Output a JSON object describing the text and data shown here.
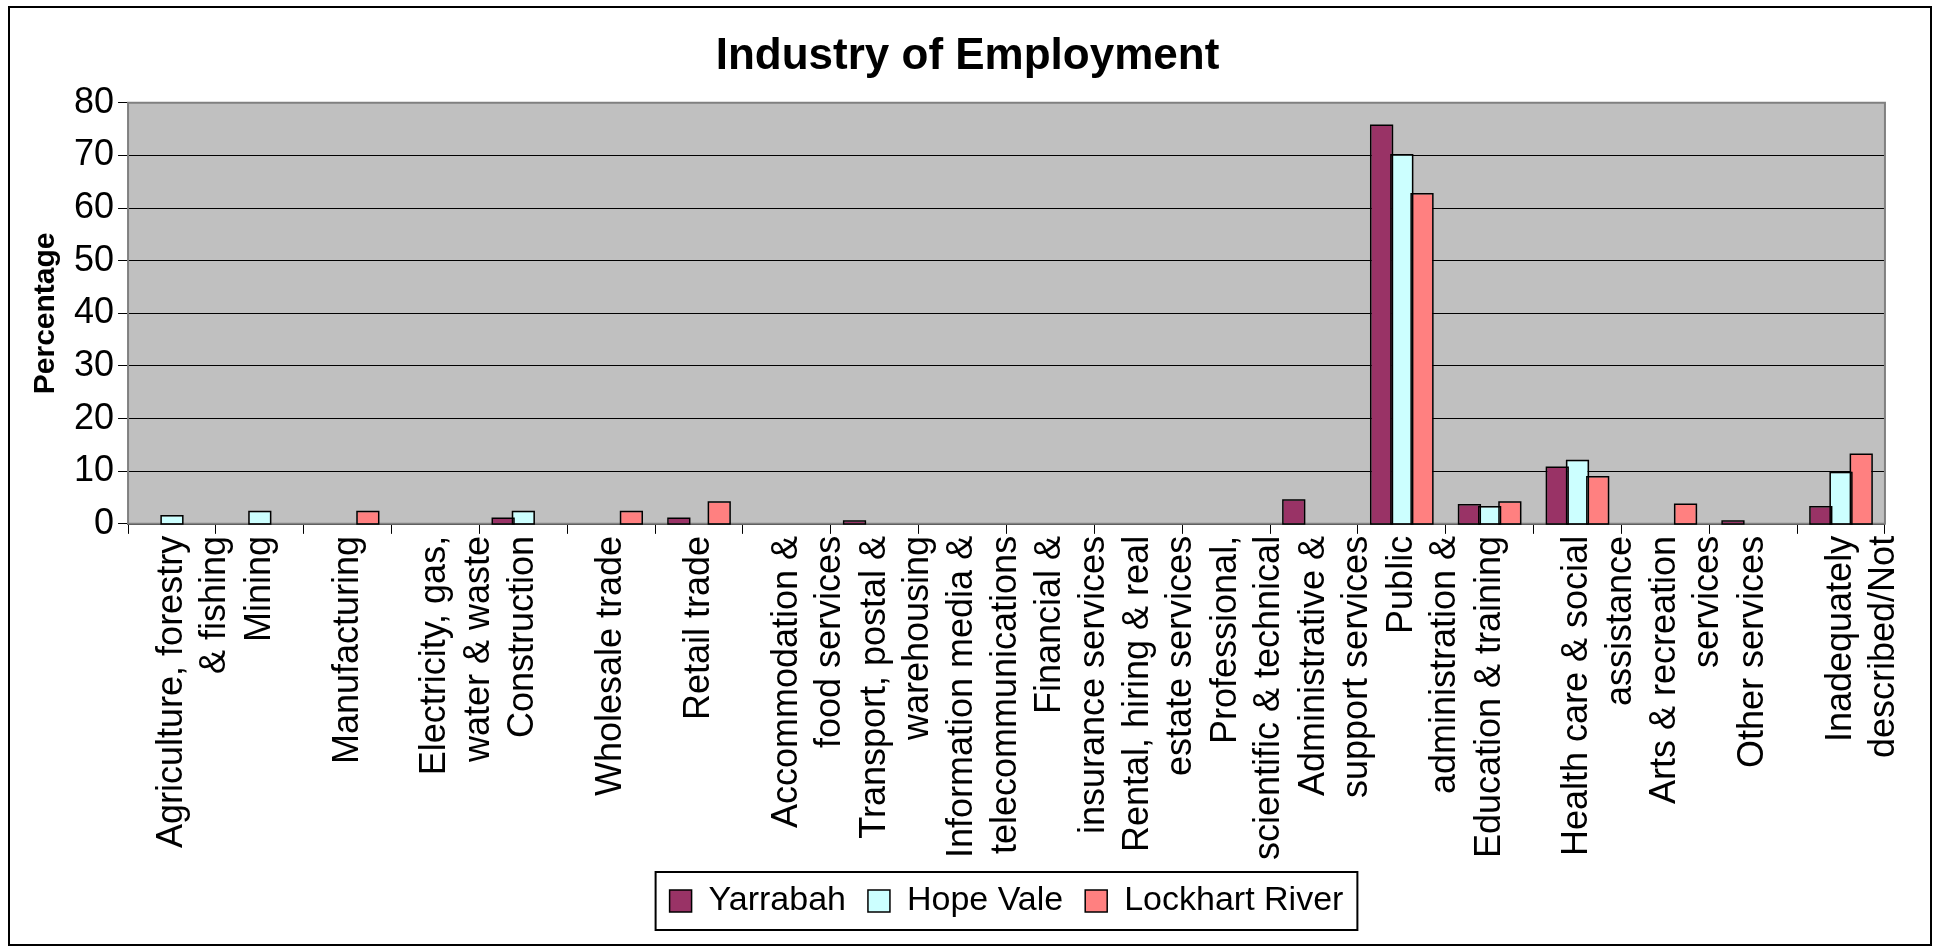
{
  "chart_data": {
    "type": "bar",
    "title": "Industry of Employment",
    "ylabel": "Percentage",
    "categories": [
      "Agriculture, forestry & fishing",
      "Mining",
      "Manufacturing",
      "Electricity, gas, water & waste",
      "Construction",
      "Wholesale trade",
      "Retail trade",
      "Accommodation & food services",
      "Transport, postal & warehousing",
      "Information media & telecommunications",
      "Financial & insurance services",
      "Rental, hiring & real estate services",
      "Professional, scientific & technical",
      "Administrative & support services",
      "Public administration &",
      "Education & training",
      "Health care & social assistance",
      "Arts & recreation services",
      "Other services",
      "Inadequately described/Not"
    ],
    "series": [
      {
        "name": "Yarrabah",
        "color": "#993366",
        "values": [
          0,
          0,
          0,
          0,
          0.9,
          0,
          0.9,
          0,
          0.4,
          0,
          0,
          0,
          0,
          4.4,
          75.6,
          3.5,
          10.6,
          0,
          0.4,
          3.1
        ]
      },
      {
        "name": "Hope Vale",
        "color": "#ccffff",
        "values": [
          1.4,
          2.2,
          0,
          0,
          2.2,
          0,
          0,
          0,
          0,
          0,
          0,
          0,
          0,
          0,
          70,
          3.1,
          11.9,
          0,
          0,
          9.6
        ]
      },
      {
        "name": "Lockhart River",
        "color": "#ff8080",
        "values": [
          0,
          0,
          2.2,
          0,
          0,
          2.2,
          4,
          0,
          0,
          0,
          0,
          0,
          0,
          0,
          62.6,
          4,
          8.8,
          3.6,
          0,
          13.1
        ]
      }
    ],
    "ylim": [
      0,
      80
    ],
    "yticks": [
      0,
      10,
      20,
      30,
      40,
      50,
      60,
      70,
      80
    ],
    "grid": "y",
    "legend": "bottom"
  }
}
